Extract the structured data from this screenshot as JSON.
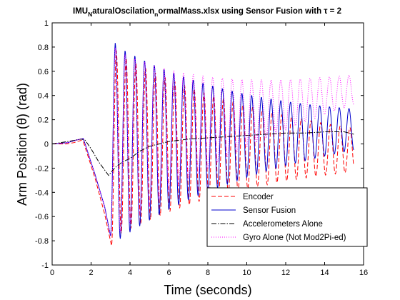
{
  "chart_data": {
    "type": "line",
    "title": {
      "pre": "IMU",
      "sub1": "N",
      "mid": "aturalOscilation",
      "sub2": "n",
      "post": "ormalMass.xlsx using Sensor Fusion with τ = 2"
    },
    "xlabel": "Time (seconds)",
    "ylabel": "Arm Position (θ) (rad)",
    "xlim": [
      0,
      16
    ],
    "ylim": [
      -1,
      1
    ],
    "xticks": [
      "0",
      "2",
      "4",
      "6",
      "8",
      "10",
      "12",
      "14",
      "16"
    ],
    "yticks": [
      "-1",
      "-0.8",
      "-0.6",
      "-0.4",
      "-0.2",
      "0",
      "0.2",
      "0.4",
      "0.6",
      "0.8",
      "1"
    ],
    "grid": false,
    "legend_position": "lower-right",
    "x_end": 15.5,
    "series": [
      {
        "name": "Encoder",
        "color": "#ff0000",
        "style": "dashed",
        "model": {
          "pre": [
            [
              0,
              0
            ],
            [
              0.7,
              0.0
            ],
            [
              1.1,
              0.01
            ],
            [
              1.5,
              0.03
            ],
            [
              1.6,
              0.02
            ],
            [
              2.2,
              -0.28
            ],
            [
              2.7,
              -0.58
            ],
            [
              3.05,
              -0.84
            ]
          ],
          "release": 3.05,
          "trough": -0.84,
          "first_peak": 0.78,
          "period": 0.5,
          "decay": 0.118,
          "offset_end": -0.05
        }
      },
      {
        "name": "Sensor Fusion",
        "color": "#0000cc",
        "style": "solid",
        "model": {
          "pre": [
            [
              0,
              0
            ],
            [
              0.8,
              0.01
            ],
            [
              1.2,
              0.03
            ],
            [
              1.6,
              0.045
            ],
            [
              2.2,
              -0.25
            ],
            [
              2.7,
              -0.52
            ],
            [
              3.0,
              -0.76
            ]
          ],
          "release": 3.0,
          "trough": -0.76,
          "first_peak": 0.84,
          "period": 0.5,
          "decay": 0.128,
          "offset_end": 0.12
        }
      },
      {
        "name": "Accelerometers Alone",
        "color": "#000000",
        "style": "dashdot",
        "points": [
          [
            0,
            0.0
          ],
          [
            0.8,
            0.02
          ],
          [
            1.5,
            0.04
          ],
          [
            1.7,
            0.03
          ],
          [
            2.0,
            -0.04
          ],
          [
            2.4,
            -0.15
          ],
          [
            2.9,
            -0.26
          ],
          [
            3.2,
            -0.2
          ],
          [
            3.6,
            -0.15
          ],
          [
            4.0,
            -0.12
          ],
          [
            4.5,
            -0.06
          ],
          [
            5.0,
            -0.02
          ],
          [
            5.5,
            0.0
          ],
          [
            6.0,
            0.02
          ],
          [
            7.0,
            0.04
          ],
          [
            8.0,
            0.05
          ],
          [
            9.0,
            0.06
          ],
          [
            10.0,
            0.07
          ],
          [
            11.0,
            0.08
          ],
          [
            12.0,
            0.09
          ],
          [
            13.0,
            0.09
          ],
          [
            14.0,
            0.1
          ],
          [
            15.0,
            0.1
          ],
          [
            15.5,
            0.08
          ]
        ]
      },
      {
        "name": "Gyro Alone (Not Mod2Pi-ed)",
        "color": "#ff00ff",
        "style": "dotted",
        "model": {
          "pre": [
            [
              0,
              0
            ],
            [
              0.8,
              0.01
            ],
            [
              1.2,
              0.03
            ],
            [
              1.6,
              0.045
            ],
            [
              2.2,
              -0.25
            ],
            [
              2.7,
              -0.52
            ],
            [
              3.0,
              -0.76
            ]
          ],
          "release": 3.0,
          "trough": -0.76,
          "first_peak": 0.8,
          "period": 0.5,
          "decay": 0.15,
          "offset_end": 0.45
        }
      }
    ]
  }
}
